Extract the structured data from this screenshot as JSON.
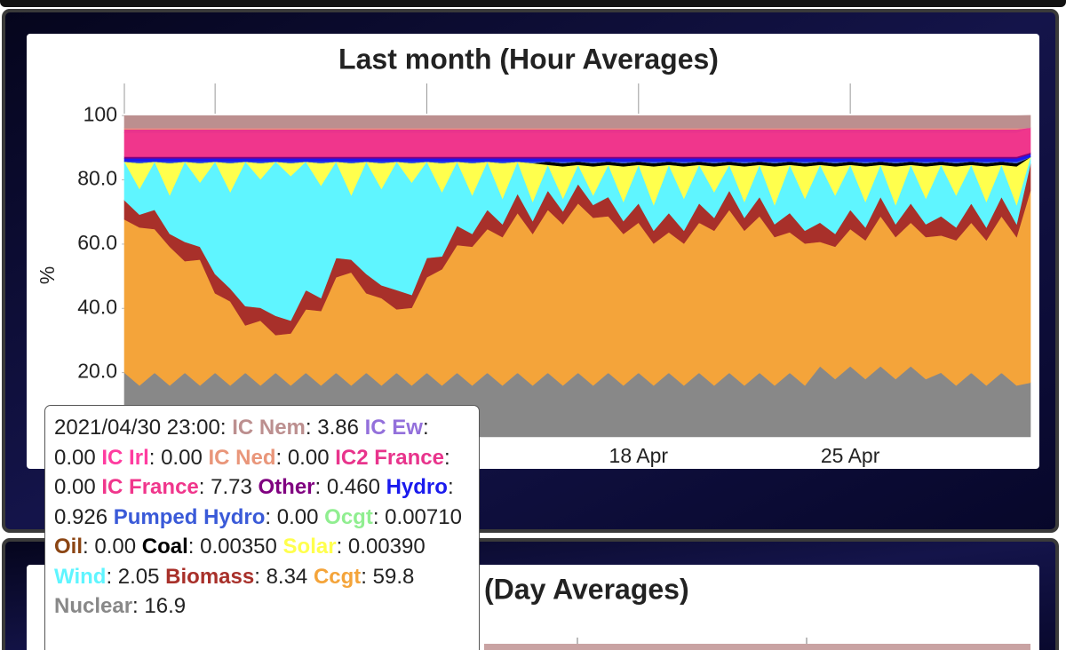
{
  "chart_data": {
    "type": "stacked-area",
    "title": "Last month (Hour Averages)",
    "y_label": "%",
    "x": [
      1,
      1.5,
      2,
      2.5,
      3,
      3.5,
      4,
      4.5,
      5,
      5.5,
      6,
      6.5,
      7,
      7.5,
      8,
      8.5,
      9,
      9.5,
      10,
      10.5,
      11,
      11.5,
      12,
      12.5,
      13,
      13.5,
      14,
      14.5,
      15,
      15.5,
      16,
      16.5,
      17,
      17.5,
      18,
      18.5,
      19,
      19.5,
      20,
      20.5,
      21,
      21.5,
      22,
      22.5,
      23,
      23.5,
      24,
      24.5,
      25,
      25.5,
      26,
      26.5,
      27,
      27.5,
      28,
      28.5,
      29,
      29.5,
      30,
      30.5,
      30.958
    ],
    "xlim": [
      1,
      30.958
    ],
    "xticks": [
      {
        "value": 4,
        "label": null
      },
      {
        "value": 11,
        "label": null
      },
      {
        "value": 18,
        "label": "18 Apr"
      },
      {
        "value": 25,
        "label": "25 Apr"
      }
    ],
    "ylim": [
      0,
      110
    ],
    "yticks": [
      {
        "value": 20,
        "label": "20.0"
      },
      {
        "value": 40,
        "label": "40.0"
      },
      {
        "value": 60,
        "label": "60.0"
      },
      {
        "value": 80,
        "label": "80.0"
      },
      100
    ],
    "grid": false,
    "series": [
      {
        "name": "IC Nem",
        "color": "#bc8f8f",
        "values": [
          3.8,
          3.8,
          3.8,
          3.8,
          3.8,
          3.8,
          3.8,
          3.8,
          3.8,
          3.8,
          3.8,
          3.8,
          3.8,
          3.8,
          3.8,
          3.8,
          3.8,
          3.8,
          3.8,
          3.8,
          3.8,
          3.8,
          3.8,
          3.8,
          3.8,
          3.8,
          3.8,
          3.8,
          3.8,
          3.8,
          3.8,
          3.8,
          3.8,
          3.8,
          3.8,
          3.8,
          3.8,
          3.8,
          3.8,
          3.8,
          3.8,
          3.8,
          3.8,
          3.8,
          3.8,
          3.8,
          3.8,
          3.8,
          3.8,
          3.8,
          3.8,
          3.8,
          3.8,
          3.8,
          3.8,
          3.8,
          3.8,
          3.8,
          3.8,
          3.8,
          3.86
        ]
      },
      {
        "name": "IC Ew",
        "color": "#9370db",
        "values": [
          0,
          0,
          0,
          0,
          0,
          0,
          0,
          0,
          0,
          0,
          0,
          0,
          0,
          0,
          0,
          0,
          0,
          0,
          0,
          0,
          0,
          0,
          0,
          0,
          0,
          0,
          0,
          0,
          0,
          0,
          0,
          0,
          0,
          0,
          0,
          0,
          0,
          0,
          0,
          0,
          0,
          0,
          0,
          0,
          0,
          0,
          0,
          0,
          0,
          0,
          0,
          0,
          0,
          0,
          0,
          0,
          0,
          0,
          0,
          0,
          0
        ]
      },
      {
        "name": "IC Irl",
        "color": "#ff3ca0",
        "values": [
          0,
          0,
          0,
          0,
          0,
          0,
          0,
          0,
          0,
          0,
          0,
          0,
          0,
          0,
          0,
          0,
          0,
          0,
          0,
          0,
          0,
          0,
          0,
          0,
          0,
          0,
          0,
          0,
          0,
          0,
          0,
          0,
          0,
          0,
          0,
          0,
          0,
          0,
          0,
          0,
          0,
          0,
          0,
          0,
          0,
          0,
          0,
          0,
          0,
          0,
          0,
          0,
          0,
          0,
          0,
          0,
          0,
          0,
          0,
          0,
          0
        ]
      },
      {
        "name": "IC Ned",
        "color": "#e9967a",
        "values": [
          0.5,
          0.5,
          0.5,
          0.5,
          0.5,
          0.5,
          0.5,
          0.5,
          0.5,
          0.5,
          0.5,
          0.5,
          0.5,
          0.5,
          0.5,
          0.5,
          0.5,
          0.5,
          0.5,
          0.5,
          0.5,
          0.5,
          0.5,
          0.5,
          0.5,
          0.5,
          0.5,
          0.5,
          0.5,
          0.5,
          0.5,
          0.5,
          0.5,
          0.5,
          0.5,
          0.5,
          0.5,
          0.5,
          0.5,
          0.5,
          0.5,
          0.5,
          0.5,
          0.5,
          0.5,
          0.5,
          0.5,
          0.5,
          0.5,
          0.5,
          0.5,
          0.5,
          0.5,
          0.5,
          0.5,
          0.5,
          0.5,
          0.5,
          0.5,
          0.5,
          0
        ]
      },
      {
        "name": "IC2 France",
        "color": "#e8348c",
        "values": [
          1,
          1,
          1,
          1,
          1,
          1,
          1,
          1,
          1,
          1,
          1,
          1,
          1,
          1,
          1,
          1,
          1,
          1,
          1,
          1,
          1,
          1,
          1,
          1,
          1,
          1,
          1,
          1,
          1,
          1,
          1,
          1,
          1,
          1,
          1,
          1,
          1,
          1,
          1,
          1,
          1,
          1,
          1,
          1,
          1,
          1,
          1,
          1,
          1,
          1,
          1,
          1,
          1,
          1,
          1,
          1,
          1,
          1,
          1,
          1,
          0
        ]
      },
      {
        "name": "IC France",
        "color": "#f0368c",
        "values": [
          7.5,
          7.5,
          7.5,
          7.5,
          7.5,
          7.5,
          7.5,
          7.5,
          7.5,
          7.5,
          7.5,
          7.5,
          7.5,
          7.5,
          7.5,
          7.5,
          7.5,
          7.5,
          7.5,
          7.5,
          7.5,
          7.5,
          7.5,
          7.5,
          7.5,
          7.5,
          7.5,
          7.5,
          7.5,
          7.5,
          7.5,
          7.5,
          7.5,
          7.5,
          7.5,
          7.5,
          7.5,
          7.5,
          7.5,
          7.5,
          7.5,
          7.5,
          7.5,
          7.5,
          7.5,
          7.5,
          7.5,
          7.5,
          7.5,
          7.5,
          7.5,
          7.5,
          7.5,
          7.5,
          7.5,
          7.5,
          7.5,
          7.5,
          7.5,
          7.5,
          7.73
        ]
      },
      {
        "name": "Other",
        "color": "#800080",
        "values": [
          0.5,
          0.5,
          0.5,
          0.5,
          0.5,
          0.5,
          0.5,
          0.5,
          0.5,
          0.5,
          0.5,
          0.5,
          0.5,
          0.5,
          0.5,
          0.5,
          0.5,
          0.5,
          0.5,
          0.5,
          0.5,
          0.5,
          0.5,
          0.5,
          0.5,
          0.5,
          0.5,
          0.5,
          0.5,
          0.5,
          0.5,
          0.5,
          0.5,
          0.5,
          0.5,
          0.5,
          0.5,
          0.5,
          0.5,
          0.5,
          0.5,
          0.5,
          0.5,
          0.5,
          0.5,
          0.5,
          0.5,
          0.5,
          0.5,
          0.5,
          0.5,
          0.5,
          0.5,
          0.5,
          0.5,
          0.5,
          0.5,
          0.5,
          0.5,
          0.5,
          0.46
        ]
      },
      {
        "name": "Hydro",
        "color": "#1a1aee",
        "values": [
          1,
          1,
          1,
          1,
          1,
          1,
          1,
          1,
          1,
          1,
          1,
          1,
          1,
          1,
          1,
          1,
          1,
          1,
          1,
          1,
          1,
          1,
          1,
          1,
          1,
          1,
          1,
          1,
          1,
          1,
          1,
          1,
          1,
          1,
          1,
          1,
          1,
          1,
          1,
          1,
          1,
          1,
          1,
          1,
          1,
          1,
          1,
          1,
          1,
          1,
          1,
          1,
          1,
          1,
          1,
          1,
          1,
          1,
          1,
          1,
          0.926
        ]
      },
      {
        "name": "Pumped Hydro",
        "color": "#3a5ad8",
        "values": [
          0,
          0.5,
          0,
          0.5,
          0,
          0.5,
          0,
          0.5,
          0,
          0.5,
          0,
          0.5,
          0,
          0.5,
          0,
          0.5,
          0,
          0.5,
          0,
          0.5,
          0,
          0.5,
          0,
          0.5,
          0,
          0.5,
          0,
          0.5,
          0,
          0.5,
          0,
          0.5,
          0,
          0.5,
          0,
          0.5,
          0,
          0.5,
          0,
          0.5,
          0,
          0.5,
          0,
          0.5,
          0,
          0.5,
          0,
          0.5,
          0,
          0.5,
          0,
          0.5,
          0,
          0.5,
          0,
          0.5,
          0,
          0.5,
          0,
          0.5,
          0
        ]
      },
      {
        "name": "Ocgt",
        "color": "#90ee90",
        "values": [
          0,
          0,
          0,
          0,
          0,
          0,
          0,
          0,
          0,
          0,
          0,
          0,
          0,
          0,
          0,
          0,
          0,
          0,
          0,
          0,
          0,
          0,
          0,
          0,
          0,
          0,
          0,
          0,
          0,
          0,
          0,
          0,
          0,
          0,
          0,
          0,
          0,
          0,
          0,
          0,
          0,
          0,
          0,
          0,
          0,
          0,
          0,
          0,
          0,
          0,
          0,
          0,
          0,
          0,
          0,
          0,
          0,
          0,
          0,
          0,
          0.0071
        ]
      },
      {
        "name": "Oil",
        "color": "#8b4513",
        "values": [
          0,
          0,
          0,
          0,
          0,
          0,
          0,
          0,
          0,
          0,
          0,
          0,
          0,
          0,
          0,
          0,
          0,
          0,
          0,
          0,
          0,
          0,
          0,
          0,
          0,
          0,
          0,
          0,
          0,
          0,
          0,
          0,
          0,
          0,
          0,
          0,
          0,
          0,
          0,
          0,
          0,
          0,
          0,
          0,
          0,
          0,
          0,
          0,
          0,
          0,
          0,
          0,
          0,
          0,
          0,
          0,
          0,
          0,
          0,
          0,
          0
        ]
      },
      {
        "name": "Coal",
        "color": "#000000",
        "values": [
          0,
          0,
          0,
          0,
          0,
          0,
          0,
          0,
          0,
          0,
          0,
          0,
          0,
          0,
          0,
          0,
          0,
          0,
          0,
          0,
          0,
          0,
          0,
          0,
          0,
          0,
          0,
          0,
          1,
          1,
          1,
          1,
          1,
          1,
          1,
          1,
          1,
          1,
          1,
          1,
          1,
          1,
          1,
          1,
          1,
          1,
          1,
          1,
          1,
          1,
          1,
          1,
          1,
          1,
          1,
          1,
          1,
          1,
          1,
          1,
          0.0035
        ]
      },
      {
        "name": "Solar",
        "color": "#ffff4d",
        "values": [
          0,
          8,
          0,
          10,
          0,
          6,
          0,
          9,
          0,
          5,
          0,
          4,
          0,
          7,
          0,
          10,
          0,
          8,
          0,
          6,
          0,
          9,
          0,
          10,
          0,
          11,
          0,
          12,
          0,
          10,
          0,
          9,
          0,
          11,
          0,
          12,
          0,
          10,
          0,
          8,
          0,
          11,
          0,
          12,
          0,
          10,
          0,
          9,
          0,
          11,
          0,
          12,
          0,
          10,
          0,
          9,
          0,
          11,
          0,
          12,
          0.0039
        ]
      },
      {
        "name": "Wind",
        "color": "#5ff5ff",
        "values": [
          12,
          8,
          15,
          12,
          25,
          20,
          35,
          30,
          45,
          40,
          48,
          45,
          40,
          35,
          30,
          20,
          35,
          30,
          40,
          35,
          30,
          20,
          20,
          12,
          15,
          8,
          10,
          6,
          8,
          4,
          6,
          3,
          10,
          6,
          12,
          8,
          15,
          10,
          12,
          8,
          8,
          5,
          10,
          6,
          15,
          10,
          18,
          12,
          14,
          8,
          10,
          6,
          12,
          8,
          16,
          10,
          12,
          8,
          10,
          6,
          2.05
        ]
      },
      {
        "name": "Biomass",
        "color": "#a8302a",
        "values": [
          6,
          4,
          6,
          4,
          6,
          4,
          6,
          4,
          6,
          4,
          6,
          4,
          6,
          4,
          6,
          4,
          6,
          4,
          6,
          4,
          6,
          4,
          6,
          4,
          6,
          4,
          6,
          4,
          6,
          4,
          6,
          4,
          6,
          4,
          6,
          4,
          6,
          4,
          6,
          4,
          6,
          4,
          6,
          4,
          6,
          4,
          6,
          4,
          6,
          4,
          6,
          4,
          6,
          4,
          6,
          4,
          6,
          4,
          6,
          4,
          8.34
        ]
      },
      {
        "name": "Ccgt",
        "color": "#f4a43a",
        "values": [
          47.7,
          49.2,
          44.7,
          43.2,
          34.7,
          39.2,
          24.7,
          26.2,
          14.7,
          20.2,
          11.7,
          16.2,
          19.7,
          23.2,
          29.7,
          35.2,
          24.7,
          27.2,
          19.7,
          24.2,
          29.7,
          36.2,
          39.7,
          43.2,
          44.7,
          46.2,
          49.7,
          47.2,
          50.7,
          50.2,
          52.7,
          52.2,
          48.7,
          47.2,
          46.7,
          44.2,
          43.7,
          44.2,
          46.7,
          48.2,
          50.7,
          48.2,
          48.7,
          46.2,
          43.7,
          44.2,
          38.7,
          41.2,
          42.7,
          43.2,
          46.7,
          44.2,
          44.7,
          44.2,
          42.7,
          45.2,
          46.7,
          45.2,
          48.7,
          46.2,
          59.8
        ]
      },
      {
        "name": "Nuclear",
        "color": "#888888",
        "values": [
          20,
          16,
          20,
          16,
          20,
          16,
          20,
          16,
          20,
          16,
          20,
          16,
          20,
          16,
          20,
          16,
          20,
          16,
          20,
          16,
          20,
          16,
          20,
          16,
          20,
          16,
          20,
          16,
          20,
          16,
          20,
          16,
          20,
          16,
          20,
          16,
          20,
          16,
          20,
          16,
          20,
          16,
          20,
          16,
          20,
          16,
          22,
          18,
          22,
          18,
          22,
          18,
          22,
          18,
          20,
          16,
          20,
          16,
          20,
          16,
          16.9
        ]
      }
    ],
    "tooltip": {
      "time": "2021/04/30 23:00",
      "value_labels": [
        "3.86",
        "0.00",
        "0.00",
        "0.00",
        "0.00",
        "7.73",
        "0.460",
        "0.926",
        "0.00",
        "0.00710",
        "0.00",
        "0.00350",
        "0.00390",
        "2.05",
        "8.34",
        "59.8",
        "16.9"
      ]
    }
  },
  "day_chart_title": "(Day Averages)"
}
